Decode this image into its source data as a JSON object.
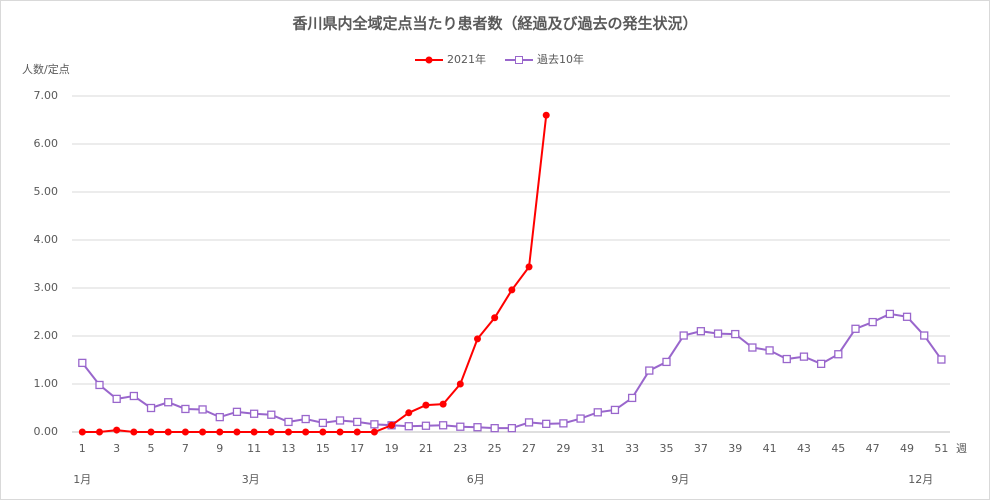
{
  "chart_data": {
    "type": "line",
    "title": "香川県内全域定点当たり患者数（経過及び過去の発生状況）",
    "y_label": "人数/定点",
    "x_label": "週",
    "x": [
      1,
      2,
      3,
      4,
      5,
      6,
      7,
      8,
      9,
      10,
      11,
      12,
      13,
      14,
      15,
      16,
      17,
      18,
      19,
      20,
      21,
      22,
      23,
      24,
      25,
      26,
      27,
      28,
      29,
      30,
      31,
      32,
      33,
      34,
      35,
      36,
      37,
      38,
      39,
      40,
      41,
      42,
      43,
      44,
      45,
      46,
      47,
      48,
      49,
      50,
      51
    ],
    "xlim": [
      0.4,
      51.5
    ],
    "xticks": [
      1,
      3,
      5,
      7,
      9,
      11,
      13,
      15,
      17,
      19,
      21,
      23,
      25,
      27,
      29,
      31,
      33,
      35,
      37,
      39,
      41,
      43,
      45,
      47,
      49,
      51
    ],
    "month_labels": [
      {
        "label": "1月",
        "x": 1
      },
      {
        "label": "3月",
        "x": 10.8
      },
      {
        "label": "6月",
        "x": 23.9
      },
      {
        "label": "9月",
        "x": 35.8
      },
      {
        "label": "12月",
        "x": 49.8
      }
    ],
    "ylim": [
      0,
      7
    ],
    "yticks": [
      {
        "value": 0,
        "label": "0.00"
      },
      {
        "value": 1,
        "label": "1.00"
      },
      {
        "value": 2,
        "label": "2.00"
      },
      {
        "value": 3,
        "label": "3.00"
      },
      {
        "value": 4,
        "label": "4.00"
      },
      {
        "value": 5,
        "label": "5.00"
      },
      {
        "value": 6,
        "label": "6.00"
      },
      {
        "value": 7,
        "label": "7.00"
      }
    ],
    "grid": true,
    "legend": "top",
    "series": [
      {
        "name": "2021年",
        "color": "#ff0000",
        "marker": "circle",
        "values": [
          0,
          0,
          0.04,
          0,
          0,
          0,
          0,
          0,
          0,
          0,
          0,
          0,
          0,
          0,
          0,
          0,
          0,
          0,
          0.14,
          0.4,
          0.56,
          0.58,
          1.0,
          1.94,
          2.38,
          2.96,
          3.44,
          6.6,
          null,
          null,
          null,
          null,
          null,
          null,
          null,
          null,
          null,
          null,
          null,
          null,
          null,
          null,
          null,
          null,
          null,
          null,
          null,
          null,
          null,
          null,
          null
        ]
      },
      {
        "name": "過去10年",
        "color": "#9966cc",
        "marker": "square",
        "values": [
          1.44,
          0.98,
          0.69,
          0.75,
          0.5,
          0.62,
          0.48,
          0.47,
          0.31,
          0.42,
          0.38,
          0.36,
          0.21,
          0.27,
          0.19,
          0.24,
          0.21,
          0.16,
          0.14,
          0.12,
          0.13,
          0.14,
          0.11,
          0.1,
          0.08,
          0.08,
          0.2,
          0.17,
          0.18,
          0.28,
          0.41,
          0.46,
          0.71,
          1.28,
          1.46,
          2.01,
          2.1,
          2.05,
          2.04,
          1.76,
          1.7,
          1.52,
          1.57,
          1.42,
          1.62,
          2.15,
          2.29,
          2.46,
          2.4,
          2.01,
          1.51
        ]
      }
    ]
  }
}
